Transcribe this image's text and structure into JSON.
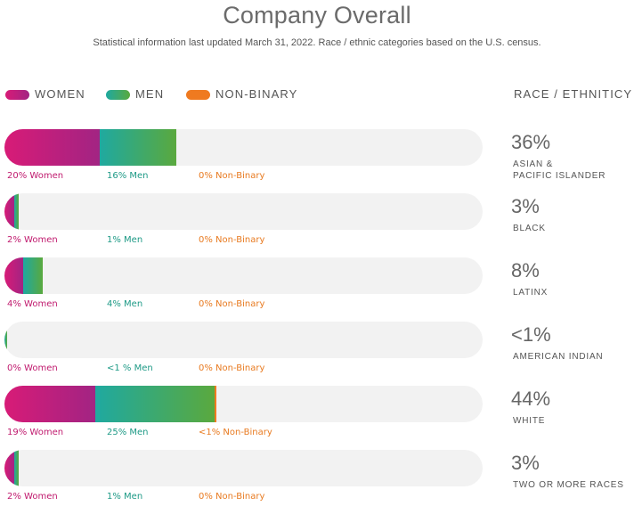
{
  "title": "Company Overall",
  "subtitle": "Statistical information last updated March 31, 2022. Race / ethnic categories based on the U.S. census.",
  "legend": [
    {
      "label": "WOMEN",
      "color": "#c81e7c"
    },
    {
      "label": "MEN",
      "color": "#2ea88a"
    },
    {
      "label": "NON-BINARY",
      "color": "#ef7a20"
    }
  ],
  "race_heading": "RACE / ETHNITICY",
  "chart_data": {
    "type": "bar",
    "orientation": "horizontal",
    "stacked": true,
    "xlim": [
      0,
      100
    ],
    "series_names": [
      "Women",
      "Men",
      "Non-Binary"
    ],
    "rows": [
      {
        "category": "ASIAN &\nPACIFIC ISLANDER",
        "total": 36,
        "total_label": "36%",
        "women": 20,
        "men": 16,
        "nonbinary": 0,
        "women_label": "20% Women",
        "men_label": "16% Men",
        "nb_label": "0% Non-Binary"
      },
      {
        "category": "BLACK",
        "total": 3,
        "total_label": "3%",
        "women": 2,
        "men": 1,
        "nonbinary": 0,
        "women_label": "2% Women",
        "men_label": "1% Men",
        "nb_label": "0% Non-Binary"
      },
      {
        "category": "LATINX",
        "total": 8,
        "total_label": "8%",
        "women": 4,
        "men": 4,
        "nonbinary": 0,
        "women_label": "4% Women",
        "men_label": "4% Men",
        "nb_label": "0% Non-Binary"
      },
      {
        "category": "AMERICAN INDIAN",
        "total": 0.5,
        "total_label": "<1%",
        "women": 0,
        "men": 0.5,
        "nonbinary": 0,
        "women_label": "0% Women",
        "men_label": "<1 % Men",
        "nb_label": "0% Non-Binary"
      },
      {
        "category": "WHITE",
        "total": 44,
        "total_label": "44%",
        "women": 19,
        "men": 25,
        "nonbinary": 0.4,
        "women_label": "19% Women",
        "men_label": "25% Men",
        "nb_label": "<1% Non-Binary"
      },
      {
        "category": "TWO OR MORE RACES",
        "total": 3,
        "total_label": "3%",
        "women": 2,
        "men": 1,
        "nonbinary": 0,
        "women_label": "2% Women",
        "men_label": "1% Men",
        "nb_label": "0% Non-Binary"
      }
    ]
  }
}
